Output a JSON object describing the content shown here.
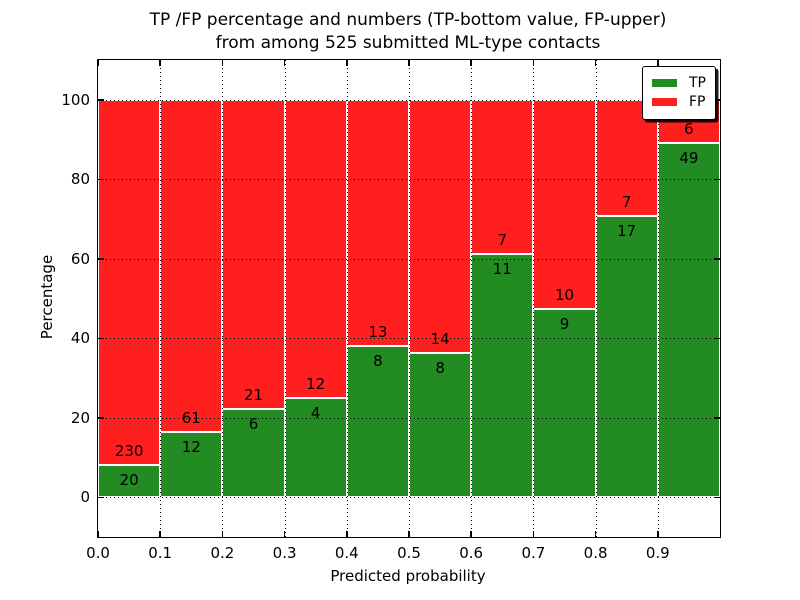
{
  "chart_data": {
    "type": "bar",
    "stacked": true,
    "title_line1": "TP /FP percentage and numbers (TP-bottom value, FP-upper)",
    "title_line2": "from among 525 submitted ML-type contacts",
    "xlabel": "Predicted probability",
    "ylabel": "Percentage",
    "xlim": [
      0.0,
      1.0
    ],
    "ylim": [
      -10,
      110
    ],
    "xticks": [
      "0.0",
      "0.1",
      "0.2",
      "0.3",
      "0.4",
      "0.5",
      "0.6",
      "0.7",
      "0.8",
      "0.9"
    ],
    "yticks": [
      0,
      20,
      40,
      60,
      80,
      100
    ],
    "bin_width": 0.1,
    "total_contacts": 525,
    "series": [
      {
        "name": "TP",
        "color": "#228b22",
        "counts": [
          20,
          12,
          6,
          4,
          8,
          8,
          11,
          9,
          17,
          49
        ]
      },
      {
        "name": "FP",
        "color": "#ff1f1f",
        "counts": [
          230,
          61,
          21,
          12,
          13,
          14,
          7,
          10,
          7,
          6
        ]
      }
    ],
    "tp_percent_heights": [
      8.0,
      16.4,
      22.2,
      25.0,
      38.1,
      36.4,
      61.1,
      47.4,
      70.8,
      89.1
    ],
    "legend": {
      "position": "upper right",
      "entries": [
        "TP",
        "FP"
      ]
    },
    "grid": {
      "style": "dotted",
      "color": "#000000"
    },
    "bar_edge_color": "#ffffff",
    "background_color": "#ffffff"
  }
}
